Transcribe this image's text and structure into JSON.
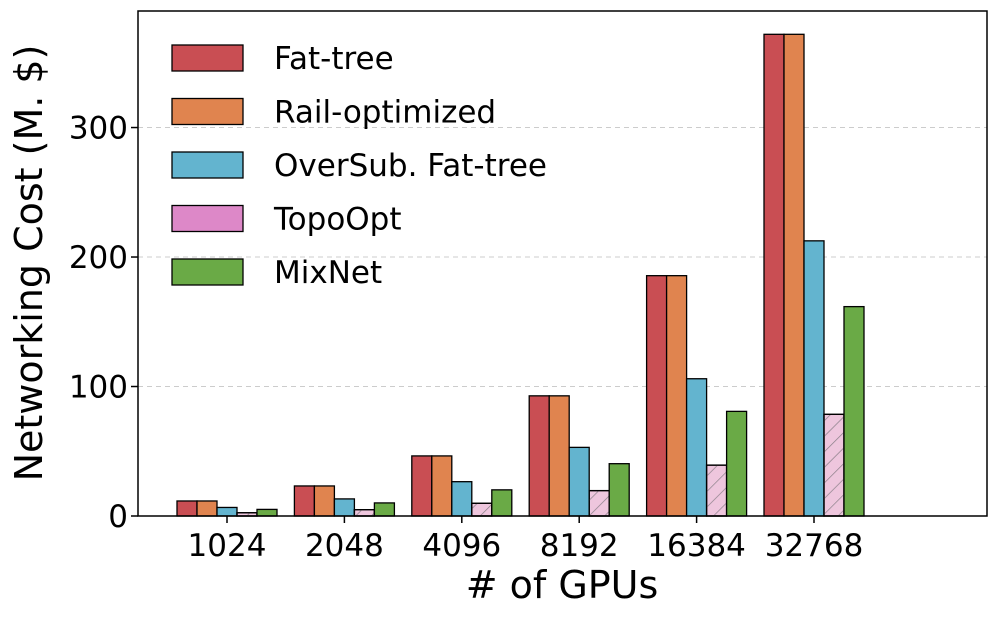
{
  "chart_data": {
    "type": "bar",
    "title": "",
    "xlabel": "# of GPUs",
    "ylabel": "Networking Cost (M. $)",
    "categories": [
      "1024",
      "2048",
      "4096",
      "8192",
      "16384",
      "32768"
    ],
    "ylim": [
      0,
      390
    ],
    "yticks": [
      0,
      100,
      200,
      300
    ],
    "grid": "horizontal-dashed",
    "legend_position": "top-left",
    "series": [
      {
        "name": "Fat-tree",
        "color": "#c94e53",
        "hatch": false,
        "values": [
          11.6,
          23.2,
          46.4,
          92.8,
          185.6,
          372
        ]
      },
      {
        "name": "Rail-optimized",
        "color": "#e0844f",
        "hatch": false,
        "values": [
          11.6,
          23.2,
          46.4,
          92.8,
          185.6,
          372
        ]
      },
      {
        "name": "OverSub. Fat-tree",
        "color": "#63b4cf",
        "hatch": false,
        "values": [
          6.6,
          13.2,
          26.5,
          53,
          106,
          212.5
        ]
      },
      {
        "name": "TopoOpt",
        "color": "#eec6dd",
        "legend_color": "#dd88c8",
        "hatch": true,
        "values": [
          2.5,
          4.9,
          9.8,
          19.6,
          39.3,
          78.5
        ]
      },
      {
        "name": "MixNet",
        "color": "#6aaa46",
        "hatch": false,
        "values": [
          5.1,
          10.1,
          20.2,
          40.4,
          80.8,
          161.7
        ]
      }
    ]
  }
}
